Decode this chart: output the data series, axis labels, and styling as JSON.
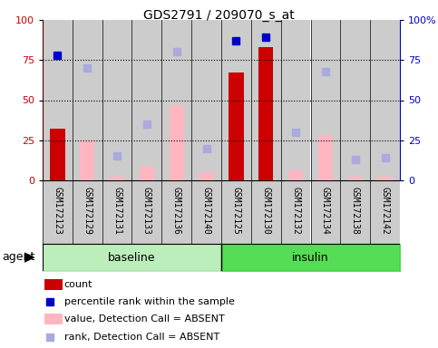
{
  "title": "GDS2791 / 209070_s_at",
  "samples": [
    "GSM172123",
    "GSM172129",
    "GSM172131",
    "GSM172133",
    "GSM172136",
    "GSM172140",
    "GSM172125",
    "GSM172130",
    "GSM172132",
    "GSM172134",
    "GSM172138",
    "GSM172142"
  ],
  "groups": [
    "baseline",
    "baseline",
    "baseline",
    "baseline",
    "baseline",
    "baseline",
    "insulin",
    "insulin",
    "insulin",
    "insulin",
    "insulin",
    "insulin"
  ],
  "red_bars": [
    32,
    null,
    null,
    null,
    null,
    null,
    67,
    83,
    null,
    null,
    null,
    null
  ],
  "pink_bars": [
    null,
    25,
    2,
    9,
    47,
    5,
    null,
    null,
    6,
    28,
    2,
    2
  ],
  "blue_squares": [
    78,
    null,
    null,
    null,
    null,
    null,
    87,
    89,
    null,
    null,
    null,
    null
  ],
  "lavender_squares": [
    null,
    70,
    15,
    35,
    80,
    20,
    null,
    null,
    30,
    68,
    13,
    14
  ],
  "ylim": [
    0,
    100
  ],
  "yticks": [
    0,
    25,
    50,
    75,
    100
  ],
  "red_color": "#cc0000",
  "pink_color": "#ffb6c1",
  "blue_color": "#0000cc",
  "lavender_color": "#aaaadd",
  "col_bg": "#cccccc",
  "baseline_color": "#bbeebb",
  "insulin_color": "#55dd55",
  "figsize": [
    4.83,
    3.84
  ],
  "dpi": 100
}
